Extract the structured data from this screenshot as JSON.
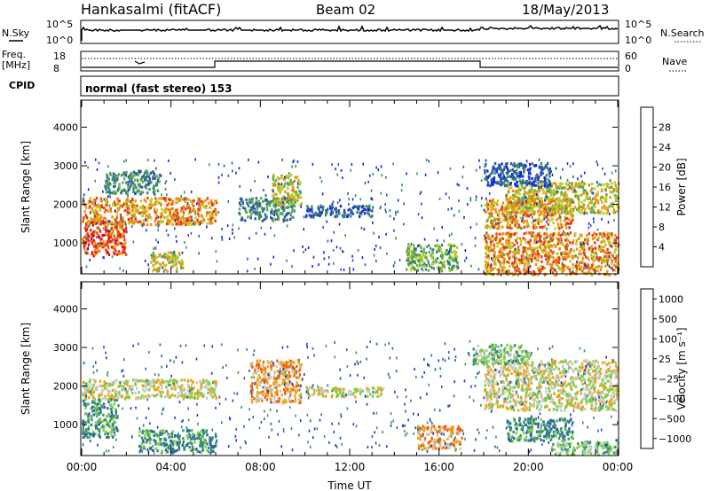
{
  "header": {
    "station": "Hankasalmi (fitACF)",
    "beam": "Beam 02",
    "date": "18/May/2013"
  },
  "top_panels": {
    "nsky_label": "N.Sky",
    "nsky_ticks": [
      "10^5",
      "10^0"
    ],
    "nsearch_label": "N.Search",
    "nsearch_ticks": [
      "10^5",
      "10^0"
    ],
    "freq_label_1": "Freq.",
    "freq_label_2": "[MHz]",
    "freq_ticks": [
      "18",
      "8"
    ],
    "nave_label": "Nave",
    "nave_ticks": [
      "60",
      "0"
    ],
    "cpid_label": "CPID",
    "cpid_text": "normal (fast stereo) 153"
  },
  "chart_data": [
    {
      "type": "heatmap",
      "name": "power",
      "ylabel": "Slant Range [km]",
      "yticks": [
        "1000",
        "2000",
        "3000",
        "4000"
      ],
      "ylim": [
        200,
        4700
      ],
      "xlim": [
        0,
        24
      ],
      "colorbar_label": "Power [dB]",
      "colorbar_ticks": [
        "4",
        "8",
        "12",
        "16",
        "20",
        "24",
        "28"
      ],
      "colors": [
        "#1424e0",
        "#2c58a8",
        "#3a8a66",
        "#5ea852",
        "#b8cc22",
        "#f08c14",
        "#e83a14",
        "#dc0c0c"
      ],
      "bands": [
        {
          "t0": 0.0,
          "t1": 2.0,
          "r0": 700,
          "r1": 1600,
          "level": 6
        },
        {
          "t0": 0.0,
          "t1": 6.0,
          "r0": 1500,
          "r1": 2200,
          "level": 5
        },
        {
          "t0": 1.0,
          "t1": 3.5,
          "r0": 2300,
          "r1": 2900,
          "level": 2
        },
        {
          "t0": 3.0,
          "t1": 4.5,
          "r0": 300,
          "r1": 800,
          "level": 4
        },
        {
          "t0": 7.0,
          "t1": 9.5,
          "r0": 1600,
          "r1": 2200,
          "level": 2
        },
        {
          "t0": 8.5,
          "t1": 9.8,
          "r0": 2000,
          "r1": 2800,
          "level": 4
        },
        {
          "t0": 10.0,
          "t1": 13.0,
          "r0": 1700,
          "r1": 2000,
          "level": 1
        },
        {
          "t0": 14.5,
          "t1": 16.8,
          "r0": 300,
          "r1": 1000,
          "level": 3
        },
        {
          "t0": 18.0,
          "t1": 22.0,
          "r0": 1400,
          "r1": 2200,
          "level": 5
        },
        {
          "t0": 19.0,
          "t1": 24.0,
          "r0": 1800,
          "r1": 2600,
          "level": 4
        },
        {
          "t0": 18.0,
          "t1": 24.0,
          "r0": 200,
          "r1": 1300,
          "level": 5
        },
        {
          "t0": 18.0,
          "t1": 21.0,
          "r0": 2500,
          "r1": 3100,
          "level": 1
        }
      ]
    },
    {
      "type": "heatmap",
      "name": "velocity",
      "ylabel": "Slant Range [km]",
      "yticks": [
        "1000",
        "2000",
        "3000",
        "4000"
      ],
      "ylim": [
        200,
        4700
      ],
      "xlim": [
        0,
        24
      ],
      "xlabel": "Time UT",
      "xticks": [
        "00:00",
        "04:00",
        "08:00",
        "12:00",
        "16:00",
        "20:00",
        "00:00"
      ],
      "colorbar_label": "Velocity [m s⁻¹]",
      "colorbar_ticks": [
        "1000",
        "500",
        "100",
        "25",
        "−25",
        "−100",
        "−500",
        "−1000"
      ],
      "colors": [
        "#1c3cc8",
        "#2c66a2",
        "#3a9070",
        "#78d048",
        "#c8c8c0",
        "#f0a010",
        "#f06010",
        "#dc0c0c"
      ],
      "bands": [
        {
          "t0": 0.0,
          "t1": 1.6,
          "r0": 700,
          "r1": 1700,
          "level": 2
        },
        {
          "t0": 0.0,
          "t1": 6.0,
          "r0": 1700,
          "r1": 2200,
          "level": 4
        },
        {
          "t0": 2.5,
          "t1": 6.0,
          "r0": 300,
          "r1": 900,
          "level": 2
        },
        {
          "t0": 7.5,
          "t1": 9.8,
          "r0": 1600,
          "r1": 2700,
          "level": 5
        },
        {
          "t0": 10.0,
          "t1": 13.5,
          "r0": 1750,
          "r1": 2000,
          "level": 4
        },
        {
          "t0": 15.0,
          "t1": 17.0,
          "r0": 400,
          "r1": 1000,
          "level": 5
        },
        {
          "t0": 18.0,
          "t1": 24.0,
          "r0": 1400,
          "r1": 2700,
          "level": 4
        },
        {
          "t0": 19.0,
          "t1": 22.0,
          "r0": 600,
          "r1": 1200,
          "level": 2
        },
        {
          "t0": 21.0,
          "t1": 24.0,
          "r0": 250,
          "r1": 600,
          "level": 3
        },
        {
          "t0": 17.5,
          "t1": 20.0,
          "r0": 2600,
          "r1": 3100,
          "level": 3
        }
      ]
    }
  ]
}
